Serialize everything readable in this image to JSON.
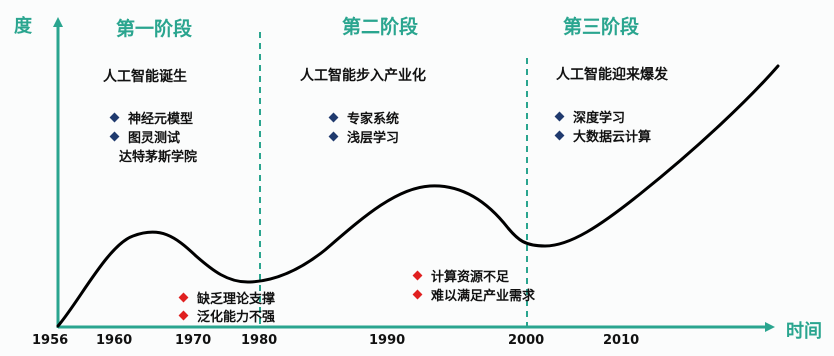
{
  "colors": {
    "axis": "#2aa58f",
    "curve": "#000000",
    "divider": "#2aa58f",
    "bullet_blue": "#1f3a6e",
    "bullet_red": "#e02020"
  },
  "axes": {
    "y_label": "度",
    "x_label": "时间",
    "ticks": [
      "1956",
      "1960",
      "1970",
      "1980",
      "1990",
      "2000",
      "2010"
    ]
  },
  "stages": [
    {
      "title": "第一阶段",
      "heading": "人工智能诞生",
      "bullets": [
        "神经元模型",
        "图灵测试"
      ],
      "extra": "达特茅斯学院",
      "challenges": [
        "缺乏理论支撑",
        "泛化能力不强"
      ]
    },
    {
      "title": "第二阶段",
      "heading": "人工智能步入产业化",
      "bullets": [
        "专家系统",
        "浅层学习"
      ],
      "challenges": [
        "计算资源不足",
        "难以满足产业需求"
      ]
    },
    {
      "title": "第三阶段",
      "heading": "人工智能迎来爆发",
      "bullets": [
        "深度学习",
        "大数据云计算"
      ]
    }
  ]
}
